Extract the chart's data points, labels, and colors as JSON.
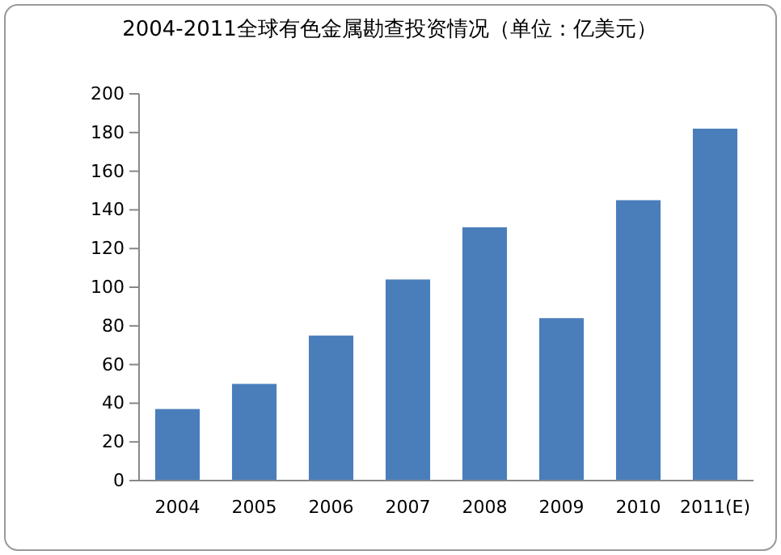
{
  "chart_data": {
    "type": "bar",
    "title": "2004-2011全球有色金属勘查投资情况（单位：亿美元）",
    "categories": [
      "2004",
      "2005",
      "2006",
      "2007",
      "2008",
      "2009",
      "2010",
      "2011(E)"
    ],
    "values": [
      37,
      50,
      75,
      104,
      131,
      84,
      145,
      182
    ],
    "color": "#4a7ebb",
    "ylim": [
      0,
      200
    ],
    "yticks": [
      0,
      20,
      40,
      60,
      80,
      100,
      120,
      140,
      160,
      180,
      200
    ],
    "grid": false
  }
}
